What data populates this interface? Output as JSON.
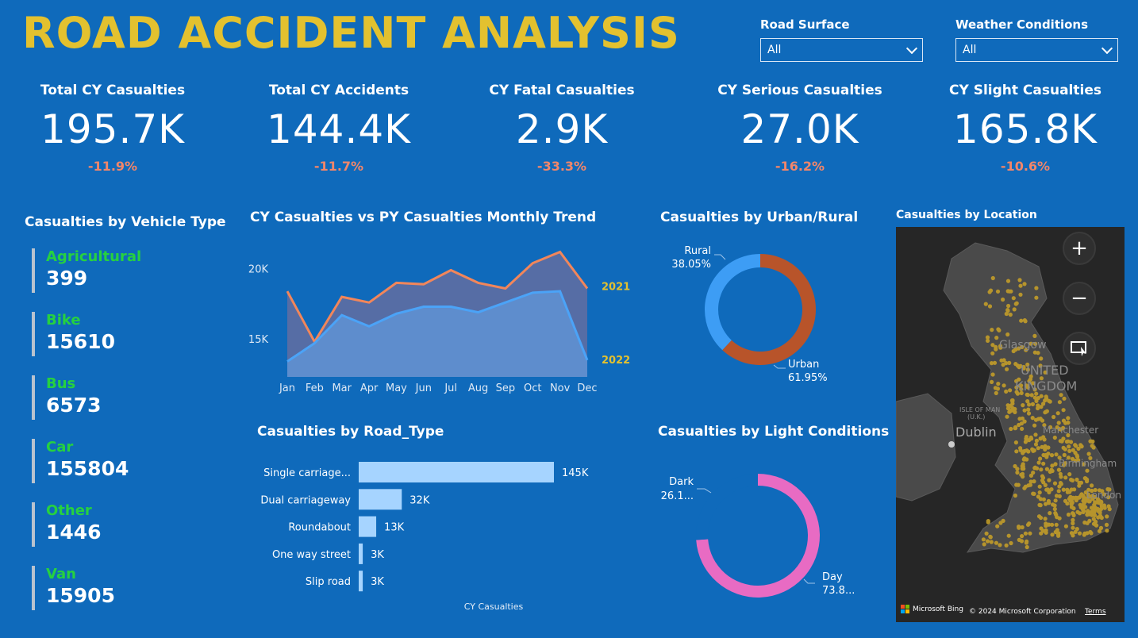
{
  "header": {
    "title": "ROAD ACCIDENT ANALYSIS"
  },
  "slicers": {
    "road_surface": {
      "label": "Road Surface",
      "value": "All"
    },
    "weather": {
      "label": "Weather Conditions",
      "value": "All"
    }
  },
  "kpis": [
    {
      "label": "Total CY Casualties",
      "value": "195.7K",
      "change": "-11.9%"
    },
    {
      "label": "Total CY Accidents",
      "value": "144.4K",
      "change": "-11.7%"
    },
    {
      "label": "CY Fatal Casualties",
      "value": "2.9K",
      "change": "-33.3%"
    },
    {
      "label": "CY Serious Casualties",
      "value": "27.0K",
      "change": "-16.2%"
    },
    {
      "label": "CY Slight Casualties",
      "value": "165.8K",
      "change": "-10.6%"
    }
  ],
  "vehicle": {
    "title": "Casualties by Vehicle Type",
    "items": [
      {
        "name": "Agricultural",
        "value": "399"
      },
      {
        "name": "Bike",
        "value": "15610"
      },
      {
        "name": "Bus",
        "value": "6573"
      },
      {
        "name": "Car",
        "value": "155804"
      },
      {
        "name": "Other",
        "value": "1446"
      },
      {
        "name": "Van",
        "value": "15905"
      }
    ]
  },
  "colors": {
    "background": "#0f6abb",
    "title": "#e3c12f",
    "change_negative": "#f2866a",
    "vehicle_name": "#26d140",
    "py_line": "#f2865a",
    "cy_line": "#4ba3f7",
    "urban": "#b8542a",
    "rural": "#3d9df5",
    "day": "#e86bc3",
    "dark": "#ffffff",
    "bar": "#a6d4ff",
    "map_dot": "#c9a227"
  },
  "chart_data": [
    {
      "type": "area",
      "title": "CY Casualties vs PY Casualties Monthly Trend",
      "categories": [
        "Jan",
        "Feb",
        "Mar",
        "Apr",
        "May",
        "Jun",
        "Jul",
        "Aug",
        "Sep",
        "Oct",
        "Nov",
        "Dec"
      ],
      "series": [
        {
          "name": "2021",
          "values": [
            18400,
            14800,
            18000,
            17600,
            19000,
            18900,
            19900,
            19000,
            18600,
            20400,
            21200,
            18600
          ]
        },
        {
          "name": "2022",
          "values": [
            13400,
            14700,
            16700,
            15900,
            16800,
            17300,
            17300,
            16900,
            17600,
            18300,
            18400,
            13500
          ]
        }
      ],
      "ytick_labels": [
        "15K",
        "20K"
      ],
      "ylim": [
        12300,
        22300
      ]
    },
    {
      "type": "pie",
      "title": "Casualties by Urban/Rural",
      "labels": [
        "Urban",
        "Rural"
      ],
      "values": [
        61.95,
        38.05
      ],
      "display_labels": [
        "61.95%",
        "38.05%"
      ]
    },
    {
      "type": "bar",
      "title": "Casualties by Road_Type",
      "categories": [
        "Single carriage...",
        "Dual carriageway",
        "Roundabout",
        "One way street",
        "Slip road"
      ],
      "values": [
        145,
        32,
        13,
        3,
        3
      ],
      "data_labels": [
        "145K",
        "32K",
        "13K",
        "3K",
        "3K"
      ],
      "xlabel": "CY Casualties"
    },
    {
      "type": "pie",
      "title": "Casualties by Light Conditions",
      "labels": [
        "Day",
        "Dark"
      ],
      "values": [
        73.8,
        26.1
      ],
      "display_labels": [
        "73.8...",
        "26.1..."
      ]
    }
  ],
  "map": {
    "title": "Casualties by Location",
    "labels": [
      "Glasgow",
      "UNITED",
      "KINGDOM",
      "ISLE OF MAN",
      "(U.K.)",
      "Dublin",
      "Manchester",
      "Birmingham",
      "London"
    ],
    "attribution": "© 2024 Microsoft Corporation",
    "terms": "Terms",
    "bing": "Microsoft Bing",
    "zoom_in_icon": "plus-icon",
    "zoom_out_icon": "minus-icon",
    "select_icon": "lasso-select-icon"
  }
}
